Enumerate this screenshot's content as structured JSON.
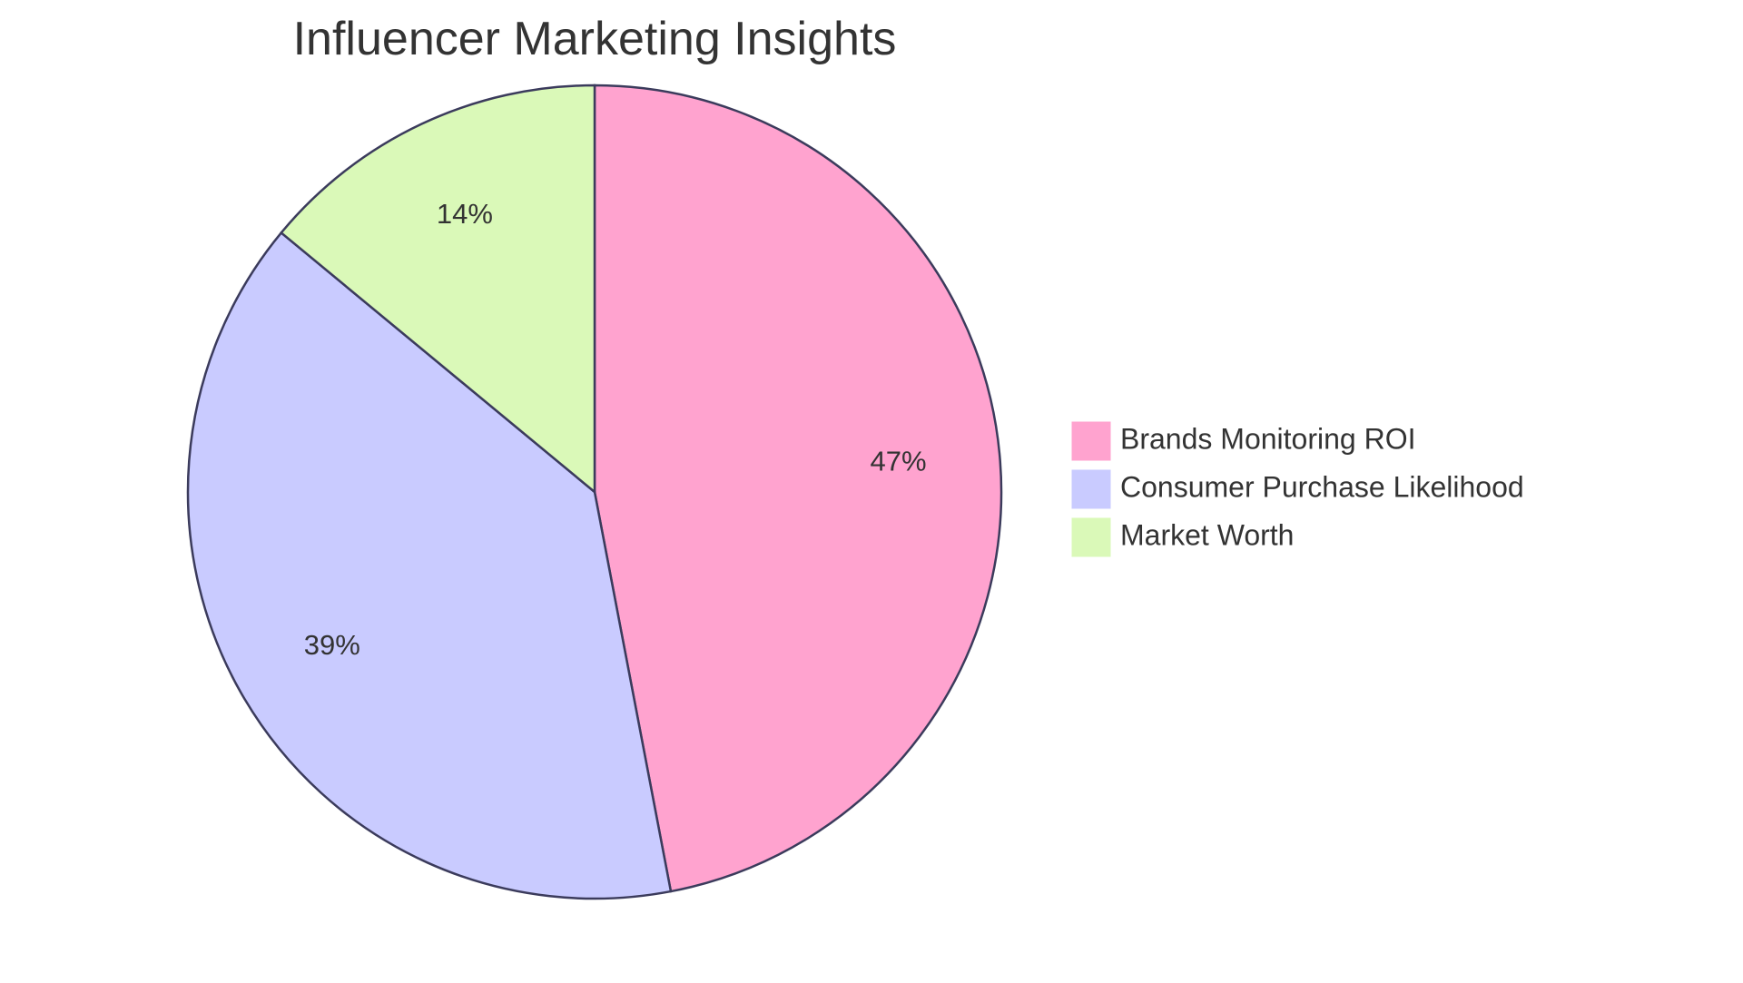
{
  "chart_data": {
    "type": "pie",
    "title": "Influencer Marketing Insights",
    "slices": [
      {
        "name": "Brands Monitoring ROI",
        "value": 47,
        "label": "47%",
        "color": "#ffa3cf"
      },
      {
        "name": "Consumer Purchase Likelihood",
        "value": 39,
        "label": "39%",
        "color": "#c9cbff"
      },
      {
        "name": "Market Worth",
        "value": 14,
        "label": "14%",
        "color": "#daf9b8"
      }
    ],
    "start_angle": "12 o'clock",
    "direction": "clockwise",
    "legend_position": "right",
    "stroke_color": "#3b3b5c"
  }
}
